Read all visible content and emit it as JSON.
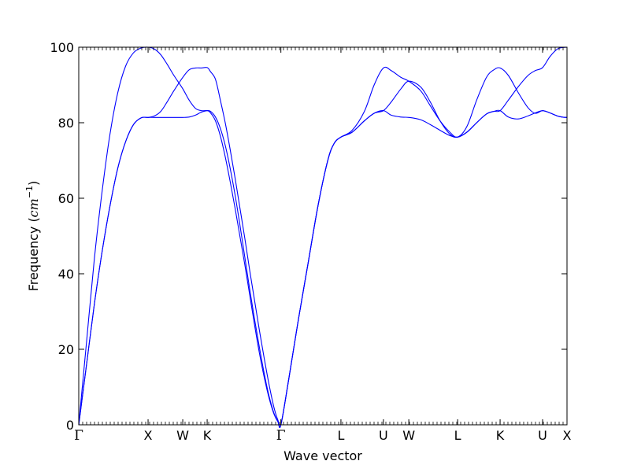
{
  "chart_data": {
    "type": "line",
    "title": "",
    "xlabel": "Wave vector",
    "ylabel": {
      "prefix": "Frequency (",
      "unit_base": "cm",
      "unit_exp": "−1",
      "suffix": ")"
    },
    "ylim": [
      0,
      100
    ],
    "yticks": [
      0,
      20,
      40,
      60,
      80,
      100
    ],
    "xlim": [
      0,
      1
    ],
    "grid": false,
    "legend": "none",
    "line_color": "#0000ff",
    "kpoints": [
      {
        "label": "Γ",
        "x": 0.0
      },
      {
        "label": "X",
        "x": 0.142
      },
      {
        "label": "W",
        "x": 0.213
      },
      {
        "label": "K",
        "x": 0.263
      },
      {
        "label": "Γ",
        "x": 0.414
      },
      {
        "label": "L",
        "x": 0.537
      },
      {
        "label": "U",
        "x": 0.624
      },
      {
        "label": "W",
        "x": 0.676
      },
      {
        "label": "L",
        "x": 0.776
      },
      {
        "label": "K",
        "x": 0.863
      },
      {
        "label": "U",
        "x": 0.95
      },
      {
        "label": "X",
        "x": 1.0
      }
    ],
    "series": [
      {
        "x": [
          0.0,
          0.016,
          0.032,
          0.048,
          0.064,
          0.08,
          0.096,
          0.112,
          0.128,
          0.142,
          0.155,
          0.168,
          0.181,
          0.195,
          0.213,
          0.226,
          0.239,
          0.251,
          0.263,
          0.27,
          0.28,
          0.29,
          0.3,
          0.31,
          0.32,
          0.33,
          0.34,
          0.35,
          0.36,
          0.37,
          0.38,
          0.39,
          0.4,
          0.408,
          0.414,
          0.43,
          0.45,
          0.47,
          0.49,
          0.51,
          0.523,
          0.537,
          0.56,
          0.585,
          0.605,
          0.624,
          0.64,
          0.66,
          0.676,
          0.7,
          0.72,
          0.74,
          0.76,
          0.776,
          0.795,
          0.815,
          0.835,
          0.85,
          0.863,
          0.88,
          0.9,
          0.92,
          0.935,
          0.95,
          0.965,
          0.98,
          0.99,
          1.0
        ],
        "y": [
          0,
          16,
          32,
          46,
          58,
          68,
          75,
          79.5,
          81.3,
          81.4,
          81.4,
          81.4,
          81.4,
          81.4,
          81.4,
          81.5,
          82.0,
          82.8,
          83.2,
          83.0,
          81.5,
          78.5,
          74.0,
          68.0,
          61.0,
          53.0,
          44.5,
          36.0,
          28.0,
          20.5,
          13.5,
          7.5,
          3.0,
          0.8,
          0,
          12,
          28,
          43,
          58,
          70,
          74.5,
          76.2,
          77.5,
          80.5,
          82.5,
          83.2,
          82.0,
          81.5,
          81.4,
          80.8,
          79.5,
          78.0,
          76.6,
          76.2,
          77.5,
          80.0,
          82.3,
          83.0,
          83.2,
          81.5,
          81.0,
          81.8,
          82.6,
          83.2,
          82.6,
          81.8,
          81.5,
          81.4
        ]
      },
      {
        "x": [
          0.0,
          0.016,
          0.032,
          0.048,
          0.064,
          0.08,
          0.096,
          0.112,
          0.128,
          0.142,
          0.155,
          0.168,
          0.181,
          0.195,
          0.213,
          0.226,
          0.239,
          0.251,
          0.263,
          0.27,
          0.28,
          0.29,
          0.3,
          0.31,
          0.32,
          0.33,
          0.34,
          0.35,
          0.36,
          0.37,
          0.38,
          0.39,
          0.4,
          0.408,
          0.414,
          0.43,
          0.45,
          0.47,
          0.49,
          0.51,
          0.523,
          0.537,
          0.56,
          0.585,
          0.605,
          0.624,
          0.64,
          0.66,
          0.676,
          0.7,
          0.72,
          0.74,
          0.76,
          0.776,
          0.795,
          0.815,
          0.835,
          0.85,
          0.863,
          0.88,
          0.9,
          0.92,
          0.935,
          0.95,
          0.965,
          0.98,
          0.99,
          1.0
        ],
        "y": [
          0,
          16,
          32,
          46,
          58,
          68,
          75,
          79.5,
          81.3,
          81.4,
          81.8,
          83.0,
          85.5,
          88.5,
          92.0,
          94.0,
          94.5,
          94.5,
          94.6,
          93.5,
          91.5,
          86.0,
          80.0,
          73.0,
          65.5,
          57.5,
          49.5,
          41.0,
          33.0,
          25.0,
          17.5,
          10.5,
          4.5,
          1.2,
          0,
          12,
          28,
          43,
          58,
          70,
          74.5,
          76.2,
          78.0,
          83.0,
          90.0,
          94.5,
          93.8,
          92.0,
          91.0,
          88.5,
          84.5,
          80.5,
          77.5,
          76.2,
          79.0,
          86.0,
          92.0,
          94.0,
          94.5,
          92.5,
          88.0,
          84.0,
          82.5,
          83.2,
          82.6,
          81.8,
          81.5,
          81.4
        ]
      },
      {
        "x": [
          0.0,
          0.016,
          0.032,
          0.048,
          0.064,
          0.08,
          0.096,
          0.112,
          0.128,
          0.142,
          0.155,
          0.168,
          0.181,
          0.195,
          0.213,
          0.226,
          0.239,
          0.251,
          0.263,
          0.27,
          0.28,
          0.29,
          0.3,
          0.31,
          0.32,
          0.33,
          0.34,
          0.35,
          0.36,
          0.37,
          0.38,
          0.39,
          0.4,
          0.408,
          0.414,
          0.43,
          0.45,
          0.47,
          0.49,
          0.51,
          0.523,
          0.537,
          0.56,
          0.585,
          0.605,
          0.624,
          0.64,
          0.66,
          0.676,
          0.7,
          0.72,
          0.74,
          0.76,
          0.776,
          0.795,
          0.815,
          0.835,
          0.85,
          0.863,
          0.88,
          0.9,
          0.92,
          0.935,
          0.95,
          0.965,
          0.98,
          0.99,
          1.0
        ],
        "y": [
          0,
          22,
          44,
          62,
          77,
          88,
          95,
          98.5,
          99.8,
          100,
          99.5,
          98.0,
          95.5,
          92.5,
          89.0,
          86.0,
          83.8,
          83.2,
          83.2,
          82.6,
          80.5,
          76.5,
          71.0,
          64.5,
          57.5,
          50.0,
          42.5,
          34.5,
          26.5,
          19.0,
          12.5,
          7.0,
          2.8,
          0.8,
          0,
          12,
          28,
          43,
          58,
          70,
          74.5,
          76.2,
          77.5,
          80.5,
          82.5,
          83.2,
          85.5,
          89.0,
          91.0,
          89.5,
          85.5,
          80.5,
          77.0,
          76.2,
          77.5,
          80.0,
          82.3,
          83.0,
          83.2,
          86.0,
          89.5,
          92.5,
          93.8,
          94.6,
          97.5,
          99.5,
          99.9,
          100
        ]
      }
    ]
  }
}
